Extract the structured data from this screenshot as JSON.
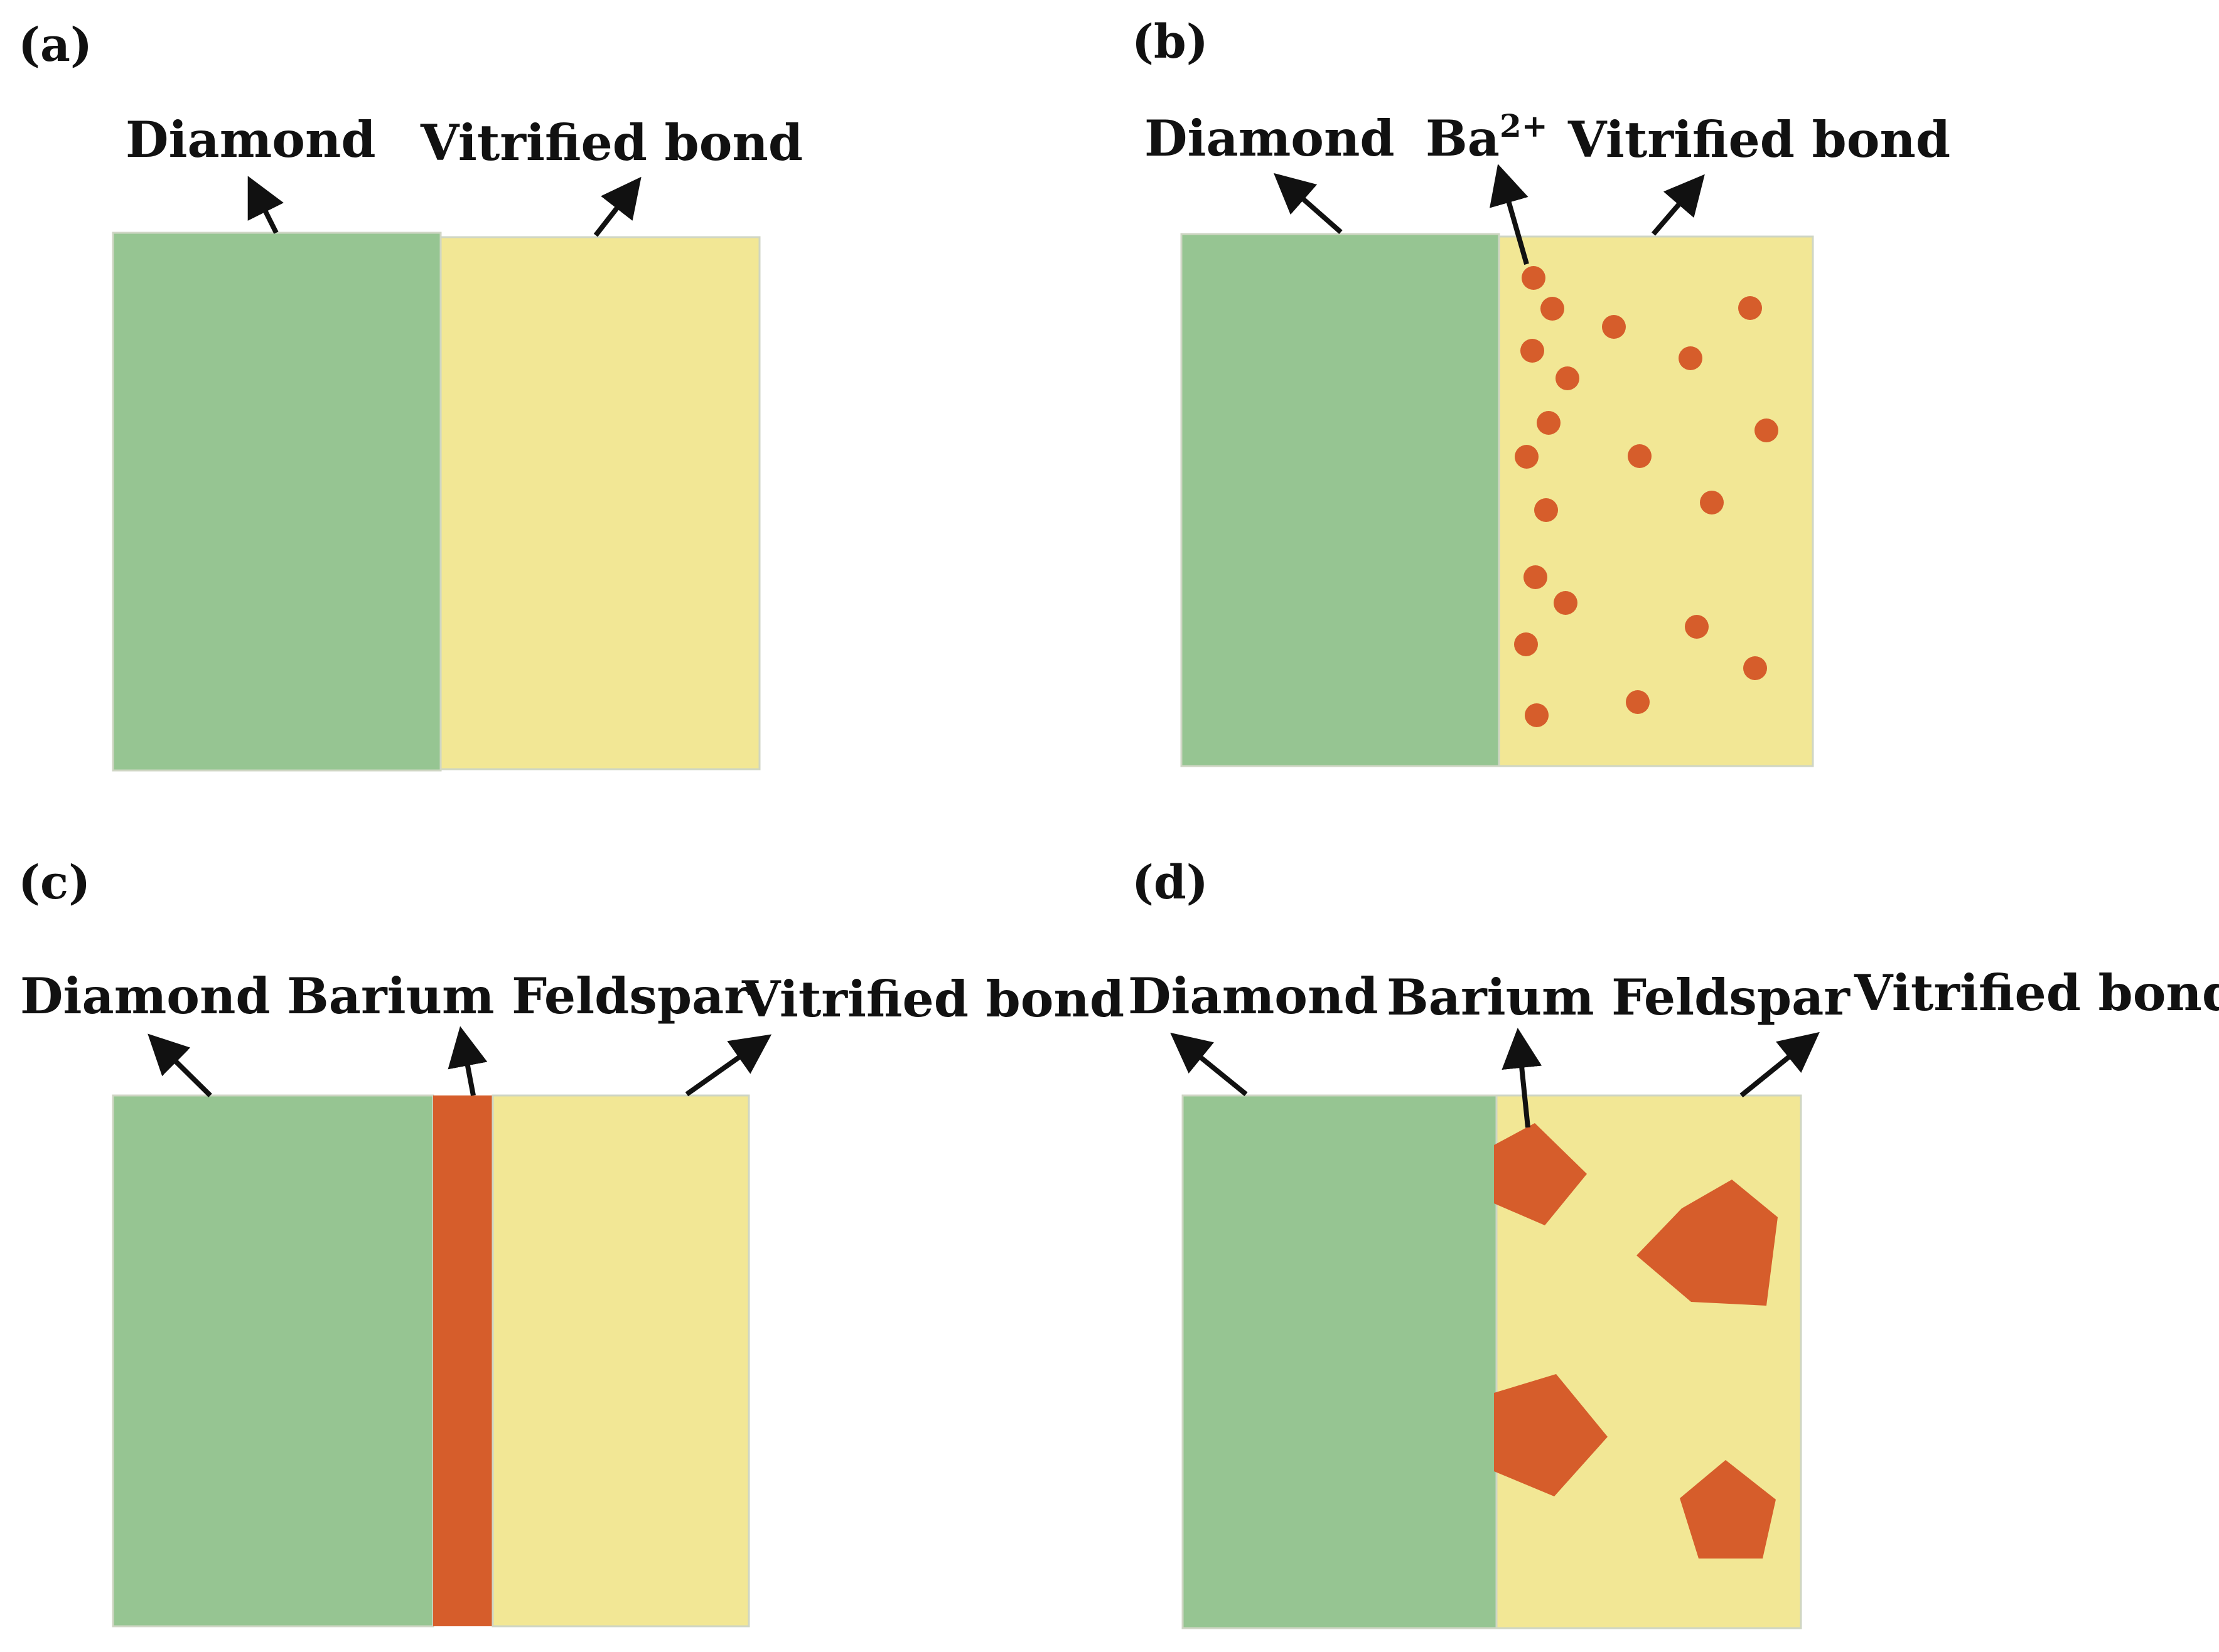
{
  "colors": {
    "diamond": "#96c592",
    "vitrified_bond": "#f2e795",
    "barium": "#d65d2b",
    "edge": "#cfd6c4",
    "text": "#111111"
  },
  "panels": [
    {
      "id": "a",
      "label": "(a)",
      "diamond_label": "Diamond",
      "bond_label": "Vitrified bond"
    },
    {
      "id": "b",
      "label": "(b)",
      "diamond_label": "Diamond",
      "ion_label_base": "Ba",
      "ion_label_charge": "2+",
      "bond_label": "Vitrified bond"
    },
    {
      "id": "c",
      "label": "(c)",
      "diamond_label": "Diamond",
      "feldspar_label": "Barium Feldspar",
      "bond_label": "Vitrified bond"
    },
    {
      "id": "d",
      "label": "(d)",
      "diamond_label": "Diamond",
      "feldspar_label": "Barium Feldspar",
      "bond_label": "Vitrified bond"
    }
  ]
}
